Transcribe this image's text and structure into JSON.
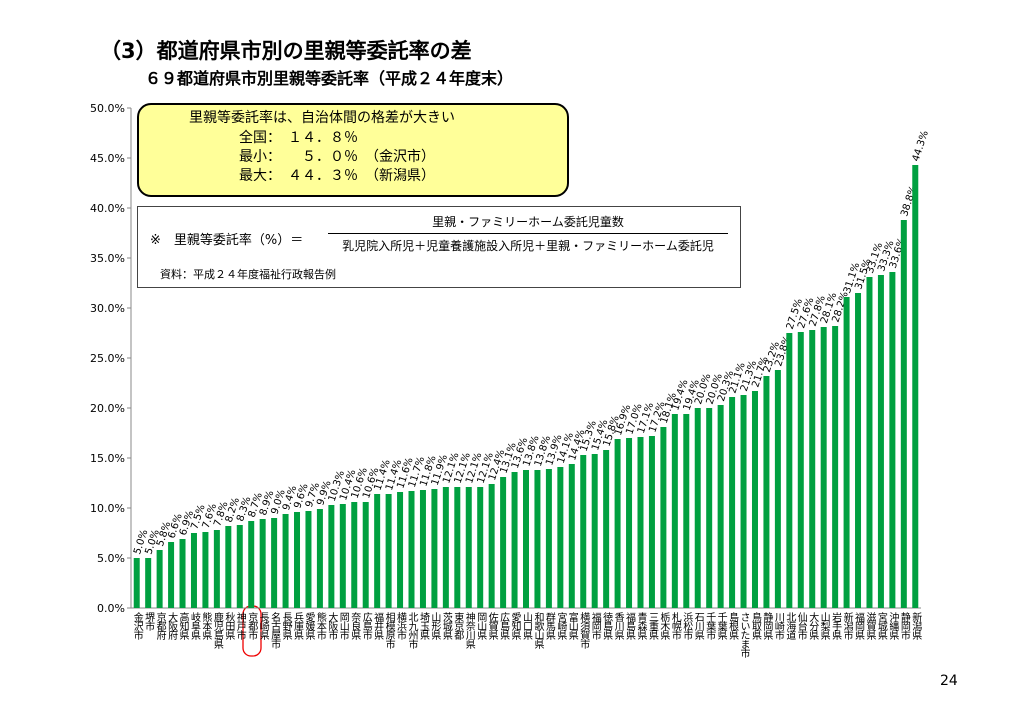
{
  "chart_data": {
    "type": "bar",
    "title": "（3）都道府県市別の里親等委託率の差",
    "subtitle": "６９都道府県市別里親等委託率（平成２４年度末）",
    "categories": [
      "金沢市",
      "堺市",
      "京都府",
      "大阪府",
      "高知県",
      "岐阜県",
      "熊本県",
      "鹿児島県",
      "秋田県",
      "神戸市",
      "京都市",
      "長崎県",
      "名古屋市",
      "長野県",
      "兵庫県",
      "愛媛県",
      "熊本市",
      "大阪市",
      "岡山市",
      "奈良県",
      "広島市",
      "福井県",
      "相模原市",
      "横浜市",
      "北九州市",
      "埼玉県",
      "山形県",
      "茨城県",
      "東京都",
      "神奈川県",
      "岡山県",
      "佐賀県",
      "広島県",
      "愛知県",
      "山口県",
      "和歌山県",
      "群馬県",
      "宮崎県",
      "富山県",
      "横須賀市",
      "福岡市",
      "徳島県",
      "香川県",
      "福島県",
      "青森県",
      "三重県",
      "栃木県",
      "札幌市",
      "浜松市",
      "石川県",
      "千葉市",
      "千葉県",
      "島根県",
      "さいたま市",
      "鳥取県",
      "静岡県",
      "川崎市",
      "北海道",
      "仙台市",
      "大分県",
      "山梨県",
      "岩手県",
      "新潟市",
      "福岡県",
      "滋賀県",
      "宮城県",
      "沖縄県",
      "静岡市",
      "新潟県"
    ],
    "values": [
      5.0,
      5.0,
      5.8,
      6.6,
      6.9,
      7.5,
      7.6,
      7.8,
      8.2,
      8.3,
      8.7,
      8.9,
      9.0,
      9.4,
      9.6,
      9.7,
      9.9,
      10.3,
      10.4,
      10.6,
      10.6,
      11.4,
      11.4,
      11.6,
      11.7,
      11.8,
      11.9,
      12.1,
      12.1,
      12.1,
      12.1,
      12.4,
      13.1,
      13.6,
      13.8,
      13.8,
      13.9,
      14.1,
      14.4,
      15.3,
      15.4,
      15.8,
      16.9,
      17.0,
      17.1,
      17.2,
      18.1,
      19.4,
      19.4,
      20.0,
      20.0,
      20.3,
      21.1,
      21.3,
      21.7,
      23.2,
      23.8,
      27.5,
      27.6,
      27.8,
      28.1,
      28.2,
      31.1,
      31.5,
      33.1,
      33.3,
      33.6,
      38.8,
      44.3
    ],
    "value_labels": [
      "5.0%",
      "5.0%",
      "5.8%",
      "6.6%",
      "6.9%",
      "7.5%",
      "7.6%",
      "7.8%",
      "8.2%",
      "8.3%",
      "8.7%",
      "8.9%",
      "9.0%",
      "9.4%",
      "9.6%",
      "9.7%",
      "9.9%",
      "10.3%",
      "10.4%",
      "10.6%",
      "10.6%",
      "11.4%",
      "11.4%",
      "11.6%",
      "11.7%",
      "11.8%",
      "11.9%",
      "12.1%",
      "12.1%",
      "12.1%",
      "12.1%",
      "12.4%",
      "13.1%",
      "13.6%",
      "13.8%",
      "13.8%",
      "13.9%",
      "14.1%",
      "14.4%",
      "15.3%",
      "15.4%",
      "15.8%",
      "16.9%",
      "17.0%",
      "17.1%",
      "17.2%",
      "18.1%",
      "19.4%",
      "19.4%",
      "20.0%",
      "20.0%",
      "20.3%",
      "21.1%",
      "21.3%",
      "21.7%",
      "23.2%",
      "23.8%",
      "27.5%",
      "27.6%",
      "27.8%",
      "28.1%",
      "28.2%",
      "31.1%",
      "31.5%",
      "33.1%",
      "33.3%",
      "33.6%",
      "38.8%",
      "44.3%"
    ],
    "color": "#00a040",
    "ylim": [
      0,
      50
    ],
    "yticks": [
      {
        "value": 0,
        "label": "0.0%"
      },
      {
        "value": 5,
        "label": "5.0%"
      },
      {
        "value": 10,
        "label": "10.0%"
      },
      {
        "value": 15,
        "label": "15.0%"
      },
      {
        "value": 20,
        "label": "20.0%"
      },
      {
        "value": 25,
        "label": "25.0%"
      },
      {
        "value": 30,
        "label": "30.0%"
      },
      {
        "value": 35,
        "label": "35.0%"
      },
      {
        "value": 40,
        "label": "40.0%"
      },
      {
        "value": 45,
        "label": "45.0%"
      },
      {
        "value": 50,
        "label": "50.0%"
      }
    ],
    "summary": {
      "heading": "里親等委託率は、自治体間の格差が大きい",
      "lines": [
        "全国：　１４．８％",
        "最小：　　５．０％　（金沢市）",
        "最大：　４４．３％　（新潟県）"
      ]
    },
    "formula": {
      "lhs": "※　里親等委託率（%）＝",
      "numerator": "里親・ファミリーホーム委託児童数",
      "denominator": "乳児院入所児＋児童養護施設入所児＋里親・ファミリーホーム委託児",
      "source": "資料：平成２４年度福祉行政報告例"
    },
    "page_number": "24"
  }
}
